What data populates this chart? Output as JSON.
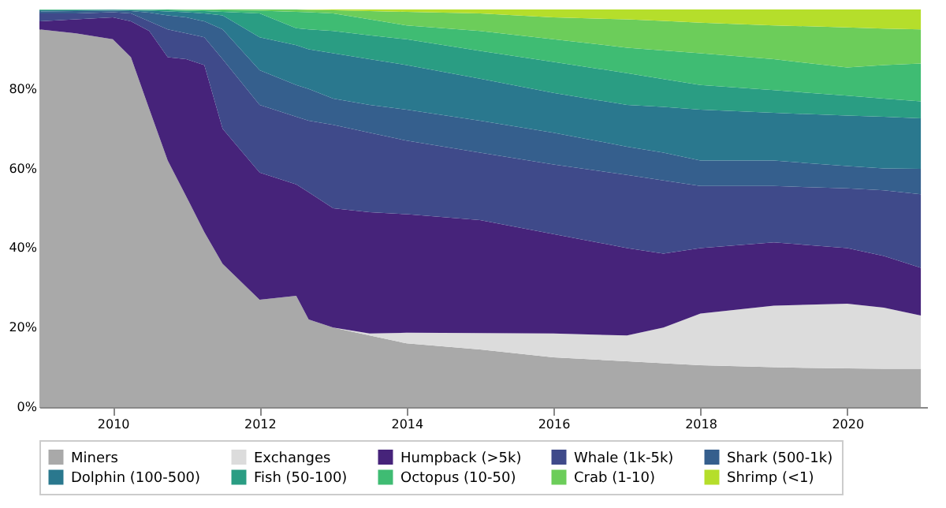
{
  "chart_data": {
    "type": "area",
    "stacked": true,
    "legend": "bottom",
    "x": [
      "2009-01",
      "2009-07",
      "2010-01",
      "2010-04",
      "2010-07",
      "2010-10",
      "2011-01",
      "2011-04",
      "2011-07",
      "2012-01",
      "2012-07",
      "2012-09",
      "2013-01",
      "2013-07",
      "2014-01",
      "2015-01",
      "2016-01",
      "2017-01",
      "2017-07",
      "2018-01",
      "2019-01",
      "2020-01",
      "2020-07",
      "2021-01"
    ],
    "xlim": [
      "2009-01-01",
      "2021-02-01"
    ],
    "xticks": [
      {
        "value": "2010",
        "label": "2010"
      },
      {
        "value": "2012",
        "label": "2012"
      },
      {
        "value": "2014",
        "label": "2014"
      },
      {
        "value": "2016",
        "label": "2016"
      },
      {
        "value": "2018",
        "label": "2018"
      },
      {
        "value": "2020",
        "label": "2020"
      }
    ],
    "ylim": [
      0,
      100
    ],
    "yticks": [
      {
        "value": 0,
        "label": "0%"
      },
      {
        "value": 20,
        "label": "20%"
      },
      {
        "value": 40,
        "label": "40%"
      },
      {
        "value": 60,
        "label": "60%"
      },
      {
        "value": 80,
        "label": "80%"
      }
    ],
    "series": [
      {
        "name": "Miners",
        "color": "#a9a9a9",
        "values": [
          95,
          94,
          92.5,
          88,
          75,
          62,
          53,
          44,
          36,
          27,
          28,
          22,
          20,
          18,
          16,
          14.5,
          12.5,
          11.5,
          11,
          10.5,
          10,
          9.7,
          9.6,
          9.6
        ]
      },
      {
        "name": "Exchanges",
        "color": "#dcdcdc",
        "values": [
          0,
          0,
          0,
          0,
          0,
          0,
          0,
          0,
          0,
          0,
          0,
          0,
          0,
          0.5,
          2.7,
          4.1,
          6,
          6.5,
          9,
          13,
          15.5,
          16.3,
          15.4,
          13.4
        ]
      },
      {
        "name": "Humpback (>5k)",
        "color": "#46237a",
        "values": [
          2,
          3.5,
          5.5,
          9,
          19.6,
          26,
          34.5,
          42,
          34,
          32,
          28,
          32,
          30,
          30.5,
          29.8,
          28.4,
          25,
          22,
          18.6,
          16.5,
          15.9,
          14,
          13,
          12
        ]
      },
      {
        "name": "Whale (1k-5k)",
        "color": "#3f4a8a",
        "values": [
          2,
          1.5,
          1.3,
          2,
          2.4,
          7,
          6.5,
          7,
          17.5,
          17,
          17,
          18,
          21,
          20,
          18.5,
          17,
          17.5,
          18.4,
          18.4,
          15.6,
          14.2,
          15,
          16.5,
          18.5
        ]
      },
      {
        "name": "Shark (500-1k)",
        "color": "#355f8d",
        "values": [
          0.5,
          0.6,
          0.4,
          0.6,
          2.2,
          3.5,
          4,
          4,
          7.5,
          8.7,
          8,
          8,
          6.6,
          7,
          7.8,
          8,
          8,
          7.1,
          7,
          6.4,
          6.4,
          5.6,
          5.5,
          6.4
        ]
      },
      {
        "name": "Dolphin (100-500)",
        "color": "#2a788e",
        "values": [
          0.3,
          0.2,
          0.2,
          0.2,
          0.5,
          1,
          1.3,
          2,
          3.5,
          8.3,
          10,
          10,
          11.4,
          11.5,
          11.2,
          10.6,
          10,
          10.5,
          11.5,
          12.8,
          12,
          12.7,
          13,
          12.7
        ]
      },
      {
        "name": "Fish (50-100)",
        "color": "#2a9d83",
        "values": [
          0.1,
          0.1,
          0.1,
          0.1,
          0.2,
          0.3,
          0.4,
          0.6,
          0.9,
          6,
          4.3,
          5,
          5.6,
          6,
          6.5,
          7,
          7.8,
          8,
          7,
          6.2,
          5.7,
          5,
          4.6,
          4.3
        ]
      },
      {
        "name": "Octopus (10-50)",
        "color": "#3fbc73",
        "values": [
          0.1,
          0.1,
          0.1,
          0.1,
          0.2,
          0.2,
          0.2,
          0.3,
          0.4,
          0.7,
          4.1,
          4.3,
          4.4,
          4,
          3.5,
          5,
          5.7,
          6.4,
          7.2,
          8,
          7.8,
          7.1,
          8.4,
          9.5
        ]
      },
      {
        "name": "Crab (1-10)",
        "color": "#6ccd5a",
        "values": [
          0,
          0,
          0,
          0,
          0,
          0.1,
          0.1,
          0.2,
          0.2,
          0.3,
          0.6,
          0.6,
          0.8,
          2.1,
          3.4,
          4.4,
          5.5,
          7.1,
          7.4,
          7.7,
          8.5,
          10.1,
          9.2,
          8.6
        ]
      },
      {
        "name": "Shrimp (<1)",
        "color": "#b5de2b",
        "values": [
          0,
          0,
          0,
          0,
          0,
          0,
          0,
          0,
          0,
          0,
          0,
          0.1,
          0.2,
          0.4,
          0.6,
          1,
          2,
          2.5,
          2.9,
          3.3,
          4,
          4.5,
          4.8,
          5
        ]
      }
    ]
  }
}
